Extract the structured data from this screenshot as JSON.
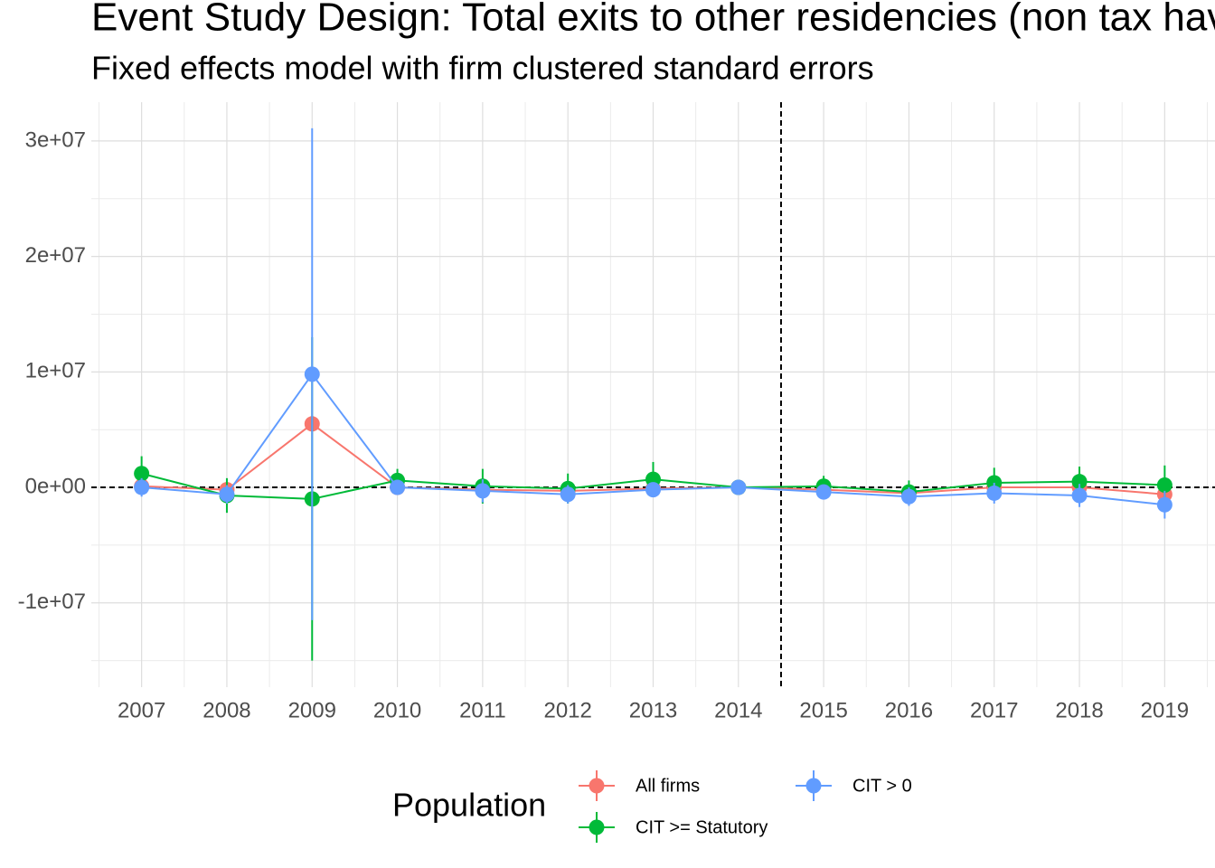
{
  "chart_data": {
    "type": "line",
    "title": "Event Study Design: Total exits to other residencies (non tax havens)",
    "subtitle": "Fixed effects model with firm clustered standard errors",
    "x": [
      2007,
      2008,
      2009,
      2010,
      2011,
      2012,
      2013,
      2014,
      2015,
      2016,
      2017,
      2018,
      2019
    ],
    "series": [
      {
        "name": "All firms",
        "color": "#F8766D",
        "values": [
          100000,
          -200000,
          5500000,
          0,
          -200000,
          -300000,
          -100000,
          0,
          -200000,
          -500000,
          0,
          0,
          -600000
        ],
        "errors": [
          500000,
          700000,
          500000,
          400000,
          600000,
          500000,
          500000,
          0,
          400000,
          600000,
          600000,
          600000,
          700000
        ]
      },
      {
        "name": "CIT >= Statutory",
        "color": "#00BA38",
        "values": [
          1200000,
          -700000,
          -1000000,
          600000,
          100000,
          -100000,
          700000,
          0,
          100000,
          -400000,
          400000,
          500000,
          200000
        ],
        "errors": [
          1500000,
          1500000,
          14000000,
          1000000,
          1500000,
          1300000,
          1500000,
          0,
          900000,
          1000000,
          1300000,
          1300000,
          1700000
        ]
      },
      {
        "name": "CIT > 0",
        "color": "#619CFF",
        "values": [
          0,
          -600000,
          9800000,
          0,
          -300000,
          -600000,
          -200000,
          0,
          -400000,
          -800000,
          -500000,
          -700000,
          -1500000
        ],
        "errors": [
          800000,
          800000,
          21300000,
          500000,
          1000000,
          800000,
          600000,
          0,
          500000,
          800000,
          900000,
          1000000,
          1200000
        ]
      }
    ],
    "legend_title": "Population",
    "xlim": [
      2006.41,
      2019.59
    ],
    "xticks": [
      2007,
      2008,
      2009,
      2010,
      2011,
      2012,
      2013,
      2014,
      2015,
      2016,
      2017,
      2018,
      2019
    ],
    "ylim": [
      -17300000,
      33360000
    ],
    "yticks": [
      {
        "value": -10000000,
        "label": "-1e+07"
      },
      {
        "value": 0,
        "label": "0e+00"
      },
      {
        "value": 10000000,
        "label": "1e+07"
      },
      {
        "value": 20000000,
        "label": "2e+07"
      },
      {
        "value": 30000000,
        "label": "3e+07"
      }
    ],
    "vline": 2014.5,
    "hline": 0,
    "grid": true
  }
}
